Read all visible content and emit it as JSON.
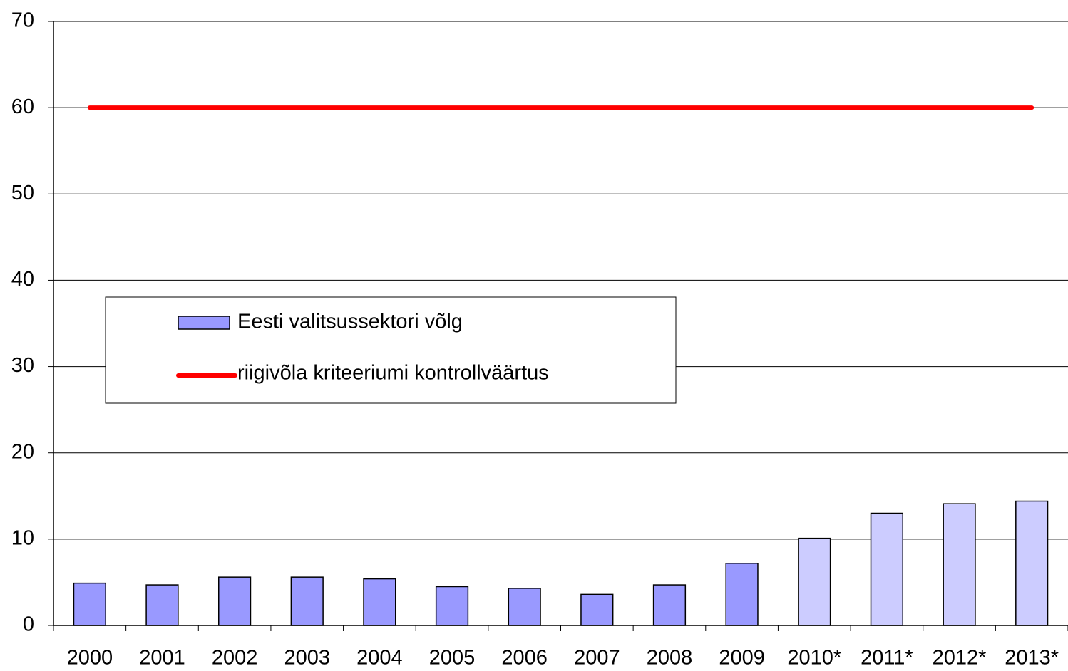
{
  "chart_data": {
    "type": "bar+line",
    "categories": [
      "2000",
      "2001",
      "2002",
      "2003",
      "2004",
      "2005",
      "2006",
      "2007",
      "2008",
      "2009",
      "2010*",
      "2011*",
      "2012*",
      "2013*"
    ],
    "series": [
      {
        "name": "Eesti valitsussektori võlg",
        "type": "bar",
        "color": "#9999ff",
        "colors": [
          "#9999ff",
          "#9999ff",
          "#9999ff",
          "#9999ff",
          "#9999ff",
          "#9999ff",
          "#9999ff",
          "#9999ff",
          "#9999ff",
          "#9999ff",
          "#ccccff",
          "#ccccff",
          "#ccccff",
          "#ccccff"
        ],
        "values": [
          4.9,
          4.7,
          5.6,
          5.6,
          5.4,
          4.5,
          4.3,
          3.6,
          4.7,
          7.2,
          10.1,
          13.0,
          14.1,
          14.4
        ]
      },
      {
        "name": "riigivõla kriteeriumi kontrollväärtus",
        "type": "line",
        "color": "#ff0000",
        "values": [
          60,
          60,
          60,
          60,
          60,
          60,
          60,
          60,
          60,
          60,
          60,
          60,
          60,
          60
        ]
      }
    ],
    "ylim": [
      0,
      70
    ],
    "yticks": [
      0,
      10,
      20,
      30,
      40,
      50,
      60,
      70
    ],
    "grid": true,
    "legend": "left"
  }
}
